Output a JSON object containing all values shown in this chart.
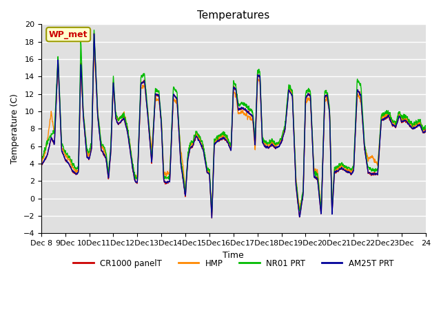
{
  "title": "Temperatures",
  "xlabel": "Time",
  "ylabel": "Temperature (C)",
  "ylim": [
    -4,
    20
  ],
  "yticks": [
    -4,
    -2,
    0,
    2,
    4,
    6,
    8,
    10,
    12,
    14,
    16,
    18,
    20
  ],
  "xtick_labels": [
    "Dec 8",
    "9Dec",
    "10Dec",
    "11Dec",
    "12Dec",
    "13Dec",
    "14Dec",
    "15Dec",
    "16Dec",
    "17Dec",
    "18Dec",
    "19Dec",
    "20Dec",
    "21Dec",
    "22Dec",
    "23Dec",
    "24"
  ],
  "series_colors": [
    "#cc0000",
    "#ff8800",
    "#00bb00",
    "#000099"
  ],
  "series_names": [
    "CR1000 panelT",
    "HMP",
    "NR01 PRT",
    "AM25T PRT"
  ],
  "annotation_text": "WP_met",
  "annotation_fg": "#cc0000",
  "annotation_bg": "#ffffcc",
  "annotation_edge": "#999900",
  "bg_color": "#e0e0e0",
  "fig_bg_color": "#ffffff",
  "linewidth": 1.0,
  "n_days": 16,
  "n_per_day": 96,
  "keyframes_t": [
    0.0,
    0.1,
    0.25,
    0.42,
    0.55,
    0.7,
    0.85,
    1.0,
    1.15,
    1.3,
    1.45,
    1.55,
    1.65,
    1.75,
    1.9,
    2.0,
    2.1,
    2.2,
    2.35,
    2.5,
    2.6,
    2.7,
    2.8,
    2.9,
    3.0,
    3.1,
    3.2,
    3.3,
    3.45,
    3.6,
    3.7,
    3.8,
    3.9,
    4.0,
    4.15,
    4.3,
    4.45,
    4.6,
    4.75,
    4.9,
    5.0,
    5.1,
    5.2,
    5.35,
    5.5,
    5.65,
    5.8,
    5.9,
    6.0,
    6.1,
    6.2,
    6.3,
    6.45,
    6.6,
    6.75,
    6.9,
    7.0,
    7.1,
    7.2,
    7.3,
    7.45,
    7.6,
    7.75,
    7.9,
    8.0,
    8.1,
    8.2,
    8.35,
    8.5,
    8.65,
    8.8,
    8.9,
    9.0,
    9.1,
    9.2,
    9.3,
    9.45,
    9.6,
    9.75,
    9.9,
    10.0,
    10.15,
    10.3,
    10.45,
    10.6,
    10.75,
    10.9,
    11.0,
    11.1,
    11.2,
    11.35,
    11.5,
    11.65,
    11.8,
    11.9,
    12.0,
    12.1,
    12.2,
    12.35,
    12.5,
    12.65,
    12.8,
    12.9,
    13.0,
    13.15,
    13.3,
    13.45,
    13.6,
    13.75,
    13.9,
    14.0,
    14.15,
    14.3,
    14.45,
    14.6,
    14.75,
    14.9,
    15.0,
    15.15,
    15.3,
    15.45,
    15.6,
    15.75,
    15.9,
    16.0
  ],
  "keyframes_base": [
    3.8,
    4.2,
    5.0,
    7.0,
    6.2,
    16.0,
    5.5,
    4.5,
    4.0,
    3.2,
    2.8,
    3.0,
    15.8,
    9.5,
    4.8,
    4.5,
    5.8,
    19.0,
    9.5,
    5.5,
    5.2,
    4.5,
    2.2,
    5.5,
    13.5,
    9.2,
    8.5,
    8.8,
    9.2,
    7.5,
    5.5,
    3.5,
    2.0,
    1.8,
    13.2,
    13.5,
    9.0,
    4.0,
    12.0,
    11.8,
    8.5,
    2.0,
    1.8,
    2.0,
    12.0,
    11.5,
    4.2,
    2.2,
    0.2,
    4.5,
    5.8,
    6.0,
    7.2,
    6.5,
    5.5,
    3.0,
    2.8,
    -2.3,
    6.2,
    6.5,
    6.8,
    7.0,
    6.5,
    5.5,
    12.8,
    12.5,
    10.2,
    10.4,
    10.2,
    9.8,
    9.5,
    6.0,
    14.2,
    14.0,
    6.5,
    6.0,
    5.8,
    6.2,
    5.8,
    6.0,
    6.5,
    8.0,
    12.5,
    11.8,
    1.5,
    -2.2,
    0.5,
    11.5,
    12.0,
    11.8,
    2.5,
    2.2,
    -2.0,
    11.8,
    11.8,
    9.8,
    -1.8,
    3.0,
    3.2,
    3.5,
    3.2,
    3.0,
    2.8,
    3.2,
    12.5,
    11.8,
    5.8,
    3.0,
    2.8,
    2.8,
    2.8,
    9.0,
    9.2,
    9.5,
    8.5,
    8.2,
    9.5,
    8.8,
    9.0,
    8.5,
    8.0,
    8.2,
    8.5,
    7.5,
    7.8
  ],
  "hmp_offset_kf": [
    0.5,
    0.5,
    1.5,
    3.0,
    1.0,
    -0.5,
    0.5,
    0.5,
    0.5,
    0.5,
    0.3,
    0.3,
    -1.0,
    0.5,
    0.5,
    0.5,
    0.5,
    -1.5,
    0.5,
    0.5,
    0.5,
    0.5,
    0.3,
    0.5,
    -0.5,
    0.5,
    0.5,
    0.5,
    0.5,
    0.5,
    0.5,
    0.5,
    0.5,
    0.5,
    -0.5,
    -0.5,
    0.5,
    1.5,
    -0.5,
    -0.5,
    0.5,
    1.0,
    1.0,
    1.0,
    -0.5,
    -0.5,
    1.5,
    1.5,
    0.5,
    0.3,
    0.3,
    0.3,
    0.3,
    0.3,
    0.3,
    0.3,
    0.3,
    0.3,
    0.3,
    0.3,
    0.3,
    0.3,
    0.3,
    0.3,
    -0.5,
    -0.5,
    -0.5,
    -0.5,
    -0.5,
    -0.5,
    -0.5,
    -0.5,
    -0.5,
    -0.5,
    0.3,
    0.3,
    0.3,
    0.3,
    0.3,
    0.3,
    0.3,
    0.3,
    0.3,
    0.3,
    0.8,
    0.8,
    0.3,
    -0.5,
    -0.5,
    -0.5,
    0.8,
    0.8,
    0.8,
    -0.5,
    -0.5,
    0.3,
    0.8,
    0.3,
    0.3,
    0.3,
    0.3,
    0.3,
    0.3,
    0.3,
    -0.5,
    -0.5,
    0.3,
    1.5,
    2.0,
    1.5,
    1.0,
    0.3,
    0.3,
    0.3,
    0.3,
    0.3,
    0.3,
    0.3,
    0.3,
    0.3,
    0.3,
    0.3,
    0.3,
    0.3,
    0.3
  ],
  "nr01_offset_kf": [
    0.8,
    0.8,
    1.5,
    0.3,
    1.5,
    0.5,
    0.8,
    0.8,
    0.8,
    0.8,
    0.5,
    0.5,
    2.5,
    0.5,
    0.8,
    0.8,
    0.8,
    0.5,
    0.5,
    0.8,
    0.8,
    0.8,
    0.5,
    0.8,
    0.5,
    0.5,
    0.5,
    0.5,
    0.5,
    0.5,
    0.5,
    0.5,
    0.5,
    0.5,
    0.8,
    0.8,
    0.5,
    0.5,
    0.5,
    0.5,
    0.5,
    0.5,
    0.5,
    0.5,
    0.8,
    0.8,
    0.5,
    0.5,
    0.5,
    0.5,
    0.5,
    0.5,
    0.5,
    0.5,
    0.5,
    0.5,
    0.5,
    0.5,
    0.5,
    0.5,
    0.5,
    0.5,
    0.5,
    0.5,
    0.5,
    0.5,
    0.5,
    0.5,
    0.5,
    0.5,
    0.5,
    0.5,
    0.5,
    0.5,
    0.5,
    0.5,
    0.5,
    0.5,
    0.5,
    0.5,
    0.5,
    0.5,
    0.5,
    0.5,
    0.5,
    0.5,
    0.5,
    0.5,
    0.5,
    0.5,
    0.5,
    0.5,
    0.5,
    0.5,
    0.5,
    0.5,
    0.5,
    0.5,
    0.5,
    0.5,
    0.5,
    0.5,
    0.5,
    0.5,
    1.2,
    1.2,
    0.5,
    0.5,
    0.5,
    0.5,
    0.5,
    0.5,
    0.5,
    0.5,
    0.5,
    0.5,
    0.5,
    0.5,
    0.5,
    0.5,
    0.5,
    0.5,
    0.5,
    0.5,
    0.5
  ]
}
